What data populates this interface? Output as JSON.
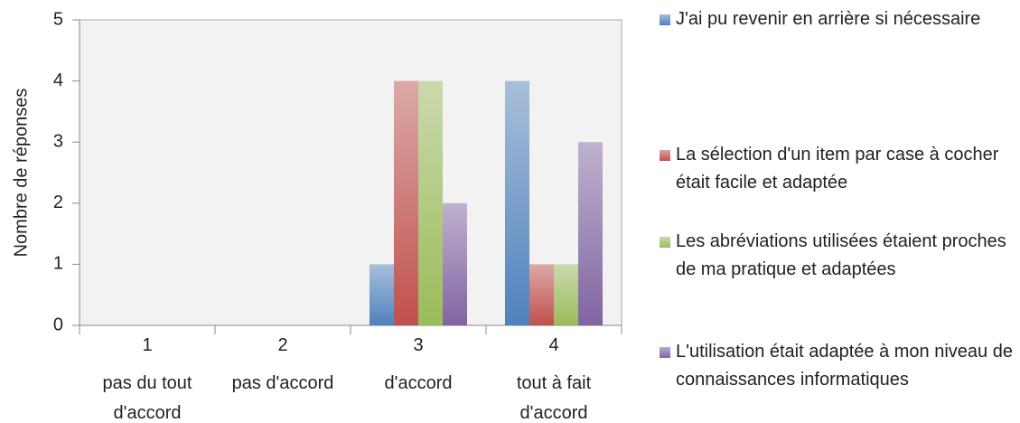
{
  "chart_data": {
    "type": "bar",
    "y_label": "Nombre de réponses",
    "categories": [
      [
        "1",
        "pas du tout",
        "d'accord"
      ],
      [
        "2",
        "pas d'accord"
      ],
      [
        "3",
        "d'accord"
      ],
      [
        "4",
        "tout à fait",
        "d'accord"
      ]
    ],
    "series": [
      {
        "name": "J'ai pu revenir en arrière si nécessaire",
        "color": "#4f81bd",
        "values": [
          0,
          0,
          1,
          4
        ]
      },
      {
        "name": "La sélection d'un item par case à cocher était facile et adaptée",
        "color": "#c0504d",
        "values": [
          0,
          0,
          4,
          1
        ]
      },
      {
        "name": "Les abréviations utilisées étaient proches de ma pratique et adaptées",
        "color": "#9bbb59",
        "values": [
          0,
          0,
          4,
          1
        ]
      },
      {
        "name": "L'utilisation était adaptée à mon niveau de connaissances informatiques",
        "color": "#8064a2",
        "values": [
          0,
          0,
          2,
          3
        ]
      }
    ],
    "ylim": [
      0,
      5
    ],
    "yticks": [
      0,
      1,
      2,
      3,
      4,
      5
    ],
    "grid": false,
    "legend": "right"
  }
}
